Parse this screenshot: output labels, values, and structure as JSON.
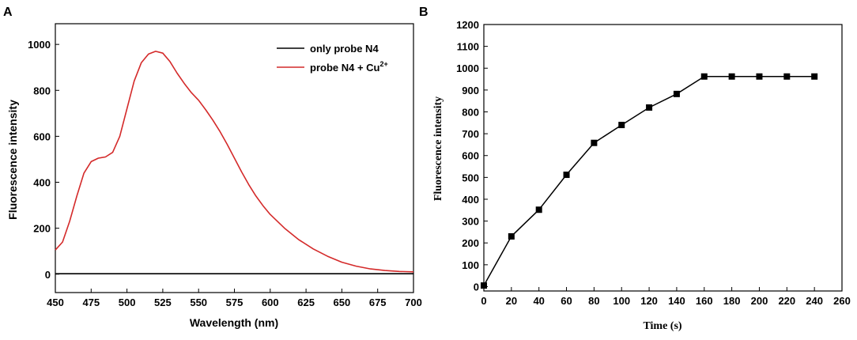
{
  "figure": {
    "panel_a_letter": "A",
    "panel_b_letter": "B"
  },
  "chart_data": [
    {
      "type": "line",
      "panel": "A",
      "xlabel": "Wavelength (nm)",
      "ylabel": "Fluorescence intensity",
      "xlim": [
        450,
        700
      ],
      "ylim": [
        -80,
        1090
      ],
      "xticks": [
        450,
        475,
        500,
        525,
        550,
        575,
        600,
        625,
        650,
        675,
        700
      ],
      "yticks": [
        0,
        200,
        400,
        600,
        800,
        1000
      ],
      "legend_position": "top-right",
      "series": [
        {
          "name": "only probe N4",
          "color": "#000000",
          "x": [
            450,
            500,
            550,
            600,
            650,
            700
          ],
          "y": [
            2,
            2,
            2,
            2,
            2,
            2
          ]
        },
        {
          "name": "probe N4 + Cu",
          "superscript": "2+",
          "color": "#d42a2a",
          "x": [
            450,
            455,
            460,
            465,
            470,
            475,
            480,
            485,
            490,
            495,
            500,
            505,
            510,
            515,
            520,
            525,
            530,
            535,
            540,
            545,
            550,
            555,
            560,
            565,
            570,
            575,
            580,
            585,
            590,
            595,
            600,
            610,
            620,
            630,
            640,
            650,
            660,
            670,
            680,
            690,
            700
          ],
          "y": [
            105,
            140,
            230,
            340,
            440,
            490,
            505,
            510,
            530,
            600,
            720,
            840,
            920,
            958,
            970,
            962,
            925,
            875,
            830,
            790,
            757,
            715,
            670,
            620,
            565,
            505,
            445,
            390,
            340,
            298,
            260,
            200,
            150,
            110,
            78,
            52,
            35,
            23,
            16,
            12,
            10
          ]
        }
      ]
    },
    {
      "type": "line",
      "panel": "B",
      "xlabel": "Time (s)",
      "ylabel": "Fluorescence intensity",
      "xlim": [
        0,
        260
      ],
      "ylim": [
        -20,
        1200
      ],
      "xticks": [
        0,
        20,
        40,
        60,
        80,
        100,
        120,
        140,
        160,
        180,
        200,
        220,
        240,
        260
      ],
      "yticks": [
        0,
        100,
        200,
        300,
        400,
        500,
        600,
        700,
        800,
        900,
        1000,
        1100,
        1200
      ],
      "marker": "square",
      "series": [
        {
          "name": "Fluorescence intensity",
          "color": "#000000",
          "x": [
            0,
            20,
            40,
            60,
            80,
            100,
            120,
            140,
            160,
            180,
            200,
            220,
            240
          ],
          "y": [
            5,
            230,
            352,
            512,
            658,
            740,
            820,
            882,
            962,
            962,
            962,
            962,
            962
          ]
        }
      ]
    }
  ]
}
